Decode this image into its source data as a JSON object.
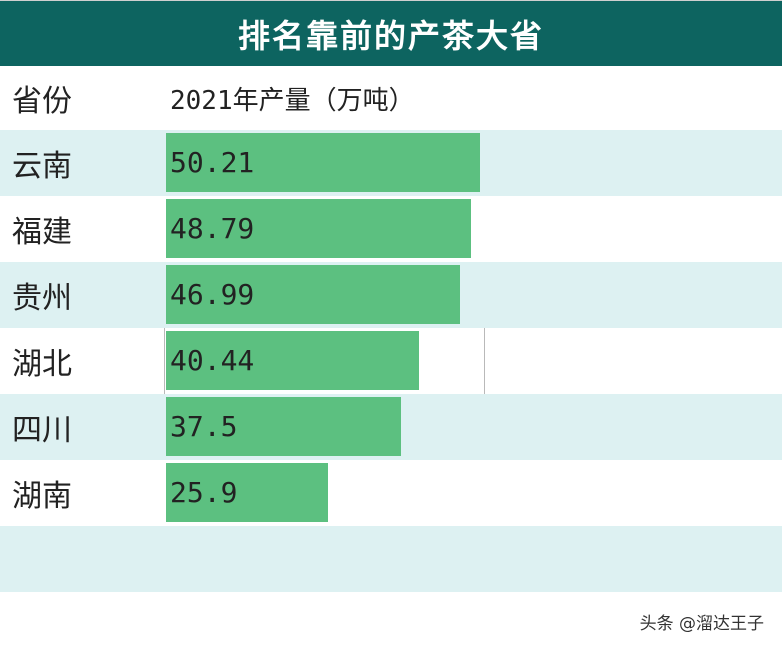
{
  "title": "排名靠前的产茶大省",
  "header": {
    "province": "省份",
    "value": "2021年产量（万吨）"
  },
  "watermark": "头条 @溜达王子",
  "colors": {
    "title_bg": "#0d6460",
    "bar": "#5cc080",
    "stripe": "#ddf1f2"
  },
  "chart_data": {
    "type": "bar",
    "orientation": "horizontal",
    "categories": [
      "云南",
      "福建",
      "贵州",
      "湖北",
      "四川",
      "湖南"
    ],
    "values": [
      50.21,
      48.79,
      46.99,
      40.44,
      37.5,
      25.9
    ],
    "value_labels": [
      "50.21",
      "48.79",
      "46.99",
      "40.44",
      "37.5",
      "25.9"
    ],
    "title": "排名靠前的产茶大省",
    "xlabel": "2021年产量（万吨）",
    "ylabel": "省份",
    "xlim": [
      0,
      50.21
    ]
  }
}
